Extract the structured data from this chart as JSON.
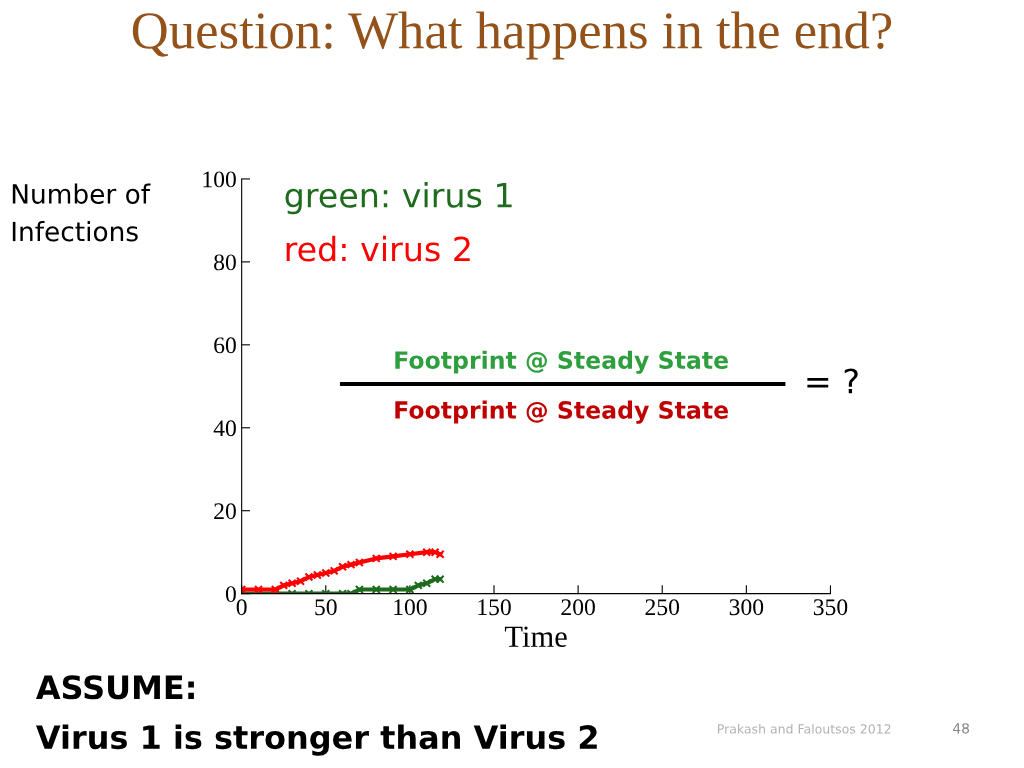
{
  "chart_data": {
    "type": "line",
    "title": "Question: What happens in the end?",
    "xlabel": "Time",
    "ylabel": "Number of\nInfections",
    "xlim": [
      0,
      350
    ],
    "ylim": [
      0,
      100
    ],
    "xticks": [
      0,
      50,
      100,
      150,
      200,
      250,
      300,
      350
    ],
    "yticks": [
      0,
      20,
      40,
      60,
      80,
      100
    ],
    "grid": false,
    "marker": "cross",
    "series": [
      {
        "color": "#1e6b1e",
        "x": [
          0,
          10,
          20,
          30,
          40,
          50,
          60,
          65,
          70,
          80,
          90,
          100,
          105,
          110,
          115,
          118
        ],
        "values": [
          0,
          0,
          0,
          0,
          0,
          0,
          0,
          0,
          1,
          1,
          1,
          1,
          2,
          2.5,
          3.5,
          3.5
        ]
      },
      {
        "color": "#ff0000",
        "x": [
          0,
          10,
          20,
          25,
          30,
          35,
          40,
          45,
          50,
          55,
          60,
          65,
          70,
          80,
          90,
          100,
          110,
          115,
          118
        ],
        "values": [
          1,
          1,
          1,
          2,
          2.5,
          3,
          4,
          4.5,
          5,
          5.5,
          6.5,
          7,
          7.5,
          8.5,
          9,
          9.5,
          10,
          10,
          9.5
        ]
      }
    ],
    "annotations": [
      "green: virus 1",
      "red: virus 2",
      "Footprint @ Steady State",
      "Footprint @ Steady State",
      "= ?",
      "ASSUME:",
      "Virus 1 is stronger than Virus 2",
      "Prakash and Faloutsos 2012",
      "48"
    ]
  }
}
